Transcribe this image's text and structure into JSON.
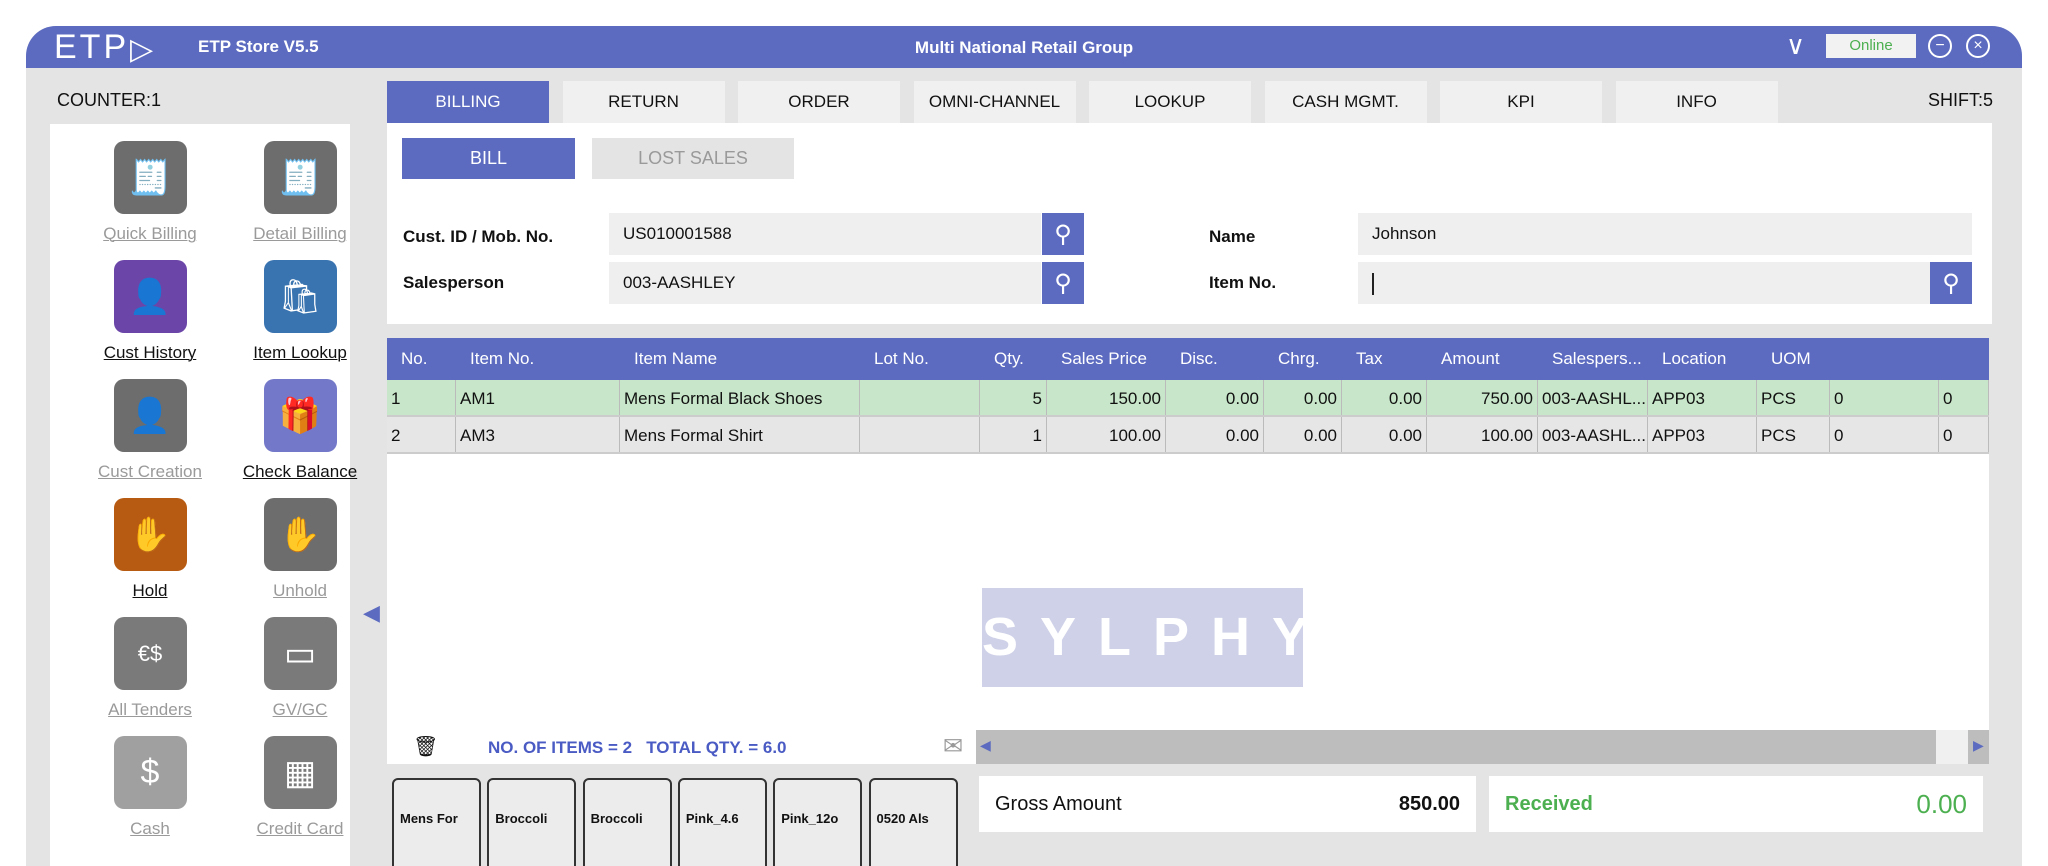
{
  "titlebar": {
    "logo": "ETP",
    "app_name": "ETP Store V5.5",
    "company": "Multi National Retail Group",
    "status": "Online"
  },
  "counter": "COUNTER:1",
  "shift": "SHIFT:5",
  "sidebar": [
    {
      "label": "Quick Billing",
      "enabled": false,
      "icon": "receipt-icon",
      "color": "#6d6d6d"
    },
    {
      "label": "Detail Billing",
      "enabled": false,
      "icon": "receipt-list-icon",
      "color": "#6d6d6d"
    },
    {
      "label": "Cust History",
      "enabled": true,
      "icon": "customer-history-icon",
      "color": "#6b46a8"
    },
    {
      "label": "Item Lookup",
      "enabled": true,
      "icon": "shopping-bag-search-icon",
      "color": "#3a74b0"
    },
    {
      "label": "Cust Creation",
      "enabled": false,
      "icon": "add-customer-icon",
      "color": "#6d6d6d"
    },
    {
      "label": "Check Balance",
      "enabled": true,
      "icon": "gift-icon",
      "color": "#7478c8"
    },
    {
      "label": "Hold",
      "enabled": true,
      "icon": "hand-hold-icon",
      "color": "#b75a12"
    },
    {
      "label": "Unhold",
      "enabled": false,
      "icon": "hand-unhold-icon",
      "color": "#6d6d6d"
    },
    {
      "label": "All Tenders",
      "enabled": false,
      "icon": "coins-icon",
      "color": "#7a7a7a"
    },
    {
      "label": "GV/GC",
      "enabled": false,
      "icon": "gift-card-icon",
      "color": "#7a7a7a"
    },
    {
      "label": "Cash",
      "enabled": false,
      "icon": "cash-icon",
      "color": "#a0a0a0"
    },
    {
      "label": "Credit Card",
      "enabled": false,
      "icon": "credit-card-icon",
      "color": "#7a7a7a"
    }
  ],
  "tabs": [
    "BILLING",
    "RETURN",
    "ORDER",
    "OMNI-CHANNEL",
    "LOOKUP",
    "CASH MGMT.",
    "KPI",
    "INFO"
  ],
  "subtabs": {
    "bill": "BILL",
    "lost_sales": "LOST SALES"
  },
  "form": {
    "cust_label": "Cust. ID / Mob. No.",
    "cust_value": "US010001588",
    "salesperson_label": "Salesperson",
    "salesperson_value": "003-AASHLEY",
    "name_label": "Name",
    "name_value": "Johnson",
    "item_label": "Item No.",
    "item_value": ""
  },
  "grid": {
    "columns": [
      "No.",
      "Item No.",
      "Item Name",
      "Lot No.",
      "Qty.",
      "Sales Price",
      "Disc.",
      "Chrg.",
      "Tax",
      "Amount",
      "Salespers...",
      "Location",
      "UOM",
      "",
      ""
    ],
    "rows": [
      [
        "1",
        "AM1",
        "Mens Formal Black Shoes",
        "",
        "5",
        "150.00",
        "0.00",
        "0.00",
        "0.00",
        "750.00",
        "003-AASHL...",
        "APP03",
        "PCS",
        "0",
        "0"
      ],
      [
        "2",
        "AM3",
        "Mens Formal Shirt",
        "",
        "1",
        "100.00",
        "0.00",
        "0.00",
        "0.00",
        "100.00",
        "003-AASHL...",
        "APP03",
        "PCS",
        "0",
        "0"
      ]
    ]
  },
  "watermark": "SYLPHY",
  "footer": {
    "summary": "NO. OF ITEMS = 2   TOTAL QTY. = 6.0"
  },
  "quick_items": [
    "Mens For",
    "Broccoli",
    "Broccoli",
    "Pink_4.6",
    "Pink_12o",
    "0520 Als"
  ],
  "totals": {
    "gross_label": "Gross Amount",
    "gross_value": "850.00",
    "received_label": "Received",
    "received_value": "0.00"
  },
  "colors": {
    "accent": "#5c6bc0",
    "selected_row": "#c8e6c9",
    "received": "#4caf50"
  }
}
